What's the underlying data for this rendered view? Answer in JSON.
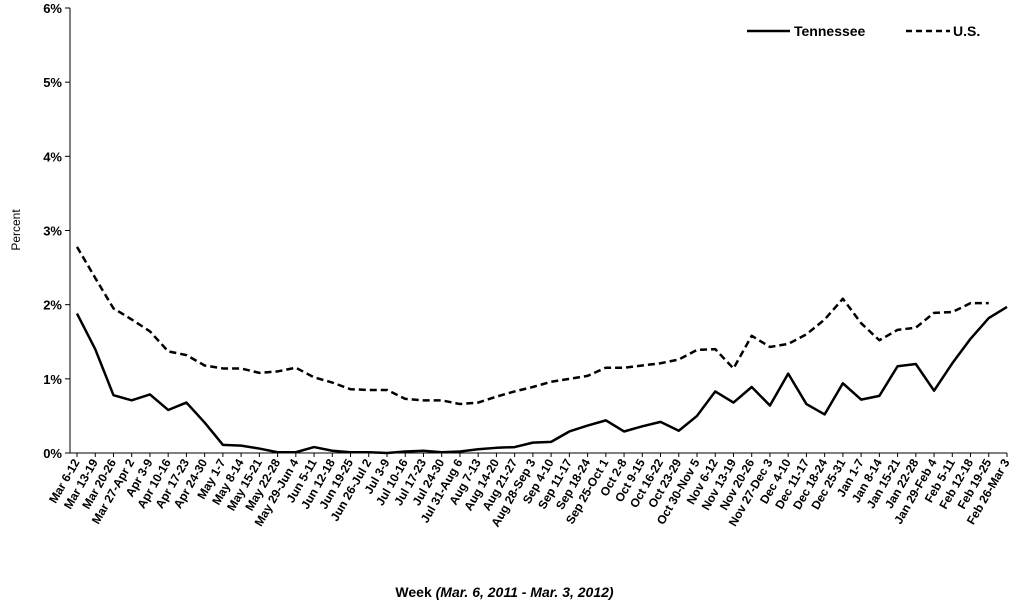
{
  "chart_data": {
    "type": "line",
    "xlabel": "Week",
    "xlabel_note": "(Mar. 6, 2011 - Mar. 3, 2012)",
    "ylabel": "Percent",
    "ylim": [
      0,
      6
    ],
    "yticks": [
      "0%",
      "1%",
      "2%",
      "3%",
      "4%",
      "5%",
      "6%"
    ],
    "grid": false,
    "legend_position": "top-right",
    "categories": [
      "Mar 6-12",
      "Mar 13-19",
      "Mar 20-26",
      "Mar 27-Apr 2",
      "Apr 3-9",
      "Apr 10-16",
      "Apr 17-23",
      "Apr 24-30",
      "May 1-7",
      "May 8-14",
      "May 15-21",
      "May 22-28",
      "May 29-Jun 4",
      "Jun 5-11",
      "Jun 12-18",
      "Jun 19-25",
      "Jun 26-Jul 2",
      "Jul 3-9",
      "Jul 10-16",
      "Jul 17-23",
      "Jul 24-30",
      "Jul 31-Aug 6",
      "Aug 7-13",
      "Aug 14-20",
      "Aug 21-27",
      "Aug 28-Sep 3",
      "Sep 4-10",
      "Sep 11-17",
      "Sep 18-24",
      "Sep 25-Oct 1",
      "Oct 2-8",
      "Oct 9-15",
      "Oct 16-22",
      "Oct 23-29",
      "Oct 30-Nov 5",
      "Nov 6-12",
      "Nov 13-19",
      "Nov 20-26",
      "Nov 27-Dec 3",
      "Dec 4-10",
      "Dec 11-17",
      "Dec 18-24",
      "Dec 25-31",
      "Jan 1-7",
      "Jan 8-14",
      "Jan 15-21",
      "Jan 22-28",
      "Jan 29-Feb 4",
      "Feb 5-11",
      "Feb 12-18",
      "Feb 19-25",
      "Feb 26-Mar 3"
    ],
    "series": [
      {
        "name": "Tennessee",
        "style": "solid",
        "color": "#000000",
        "values": [
          1.88,
          1.4,
          0.78,
          0.71,
          0.79,
          0.58,
          0.68,
          0.41,
          0.11,
          0.1,
          0.06,
          0.01,
          0.01,
          0.08,
          0.03,
          0.01,
          0.01,
          0.0,
          0.02,
          0.03,
          0.01,
          0.02,
          0.05,
          0.07,
          0.08,
          0.14,
          0.15,
          0.29,
          0.37,
          0.44,
          0.29,
          0.36,
          0.42,
          0.3,
          0.5,
          0.83,
          0.68,
          0.89,
          0.64,
          1.07,
          0.66,
          0.52,
          0.94,
          0.72,
          0.77,
          1.17,
          1.2,
          0.84,
          1.21,
          1.54,
          1.82,
          1.97
        ]
      },
      {
        "name": "U.S.",
        "style": "dashed",
        "color": "#000000",
        "values": [
          2.78,
          2.36,
          1.95,
          1.8,
          1.64,
          1.37,
          1.32,
          1.18,
          1.14,
          1.14,
          1.08,
          1.1,
          1.15,
          1.02,
          0.95,
          0.86,
          0.85,
          0.85,
          0.73,
          0.71,
          0.71,
          0.66,
          0.68,
          0.76,
          0.83,
          0.89,
          0.96,
          1.0,
          1.04,
          1.15,
          1.15,
          1.18,
          1.21,
          1.26,
          1.39,
          1.4,
          1.14,
          1.58,
          1.43,
          1.47,
          1.6,
          1.8,
          2.08,
          1.75,
          1.52,
          1.66,
          1.69,
          1.89,
          1.9,
          2.02,
          2.02,
          null
        ]
      }
    ]
  }
}
